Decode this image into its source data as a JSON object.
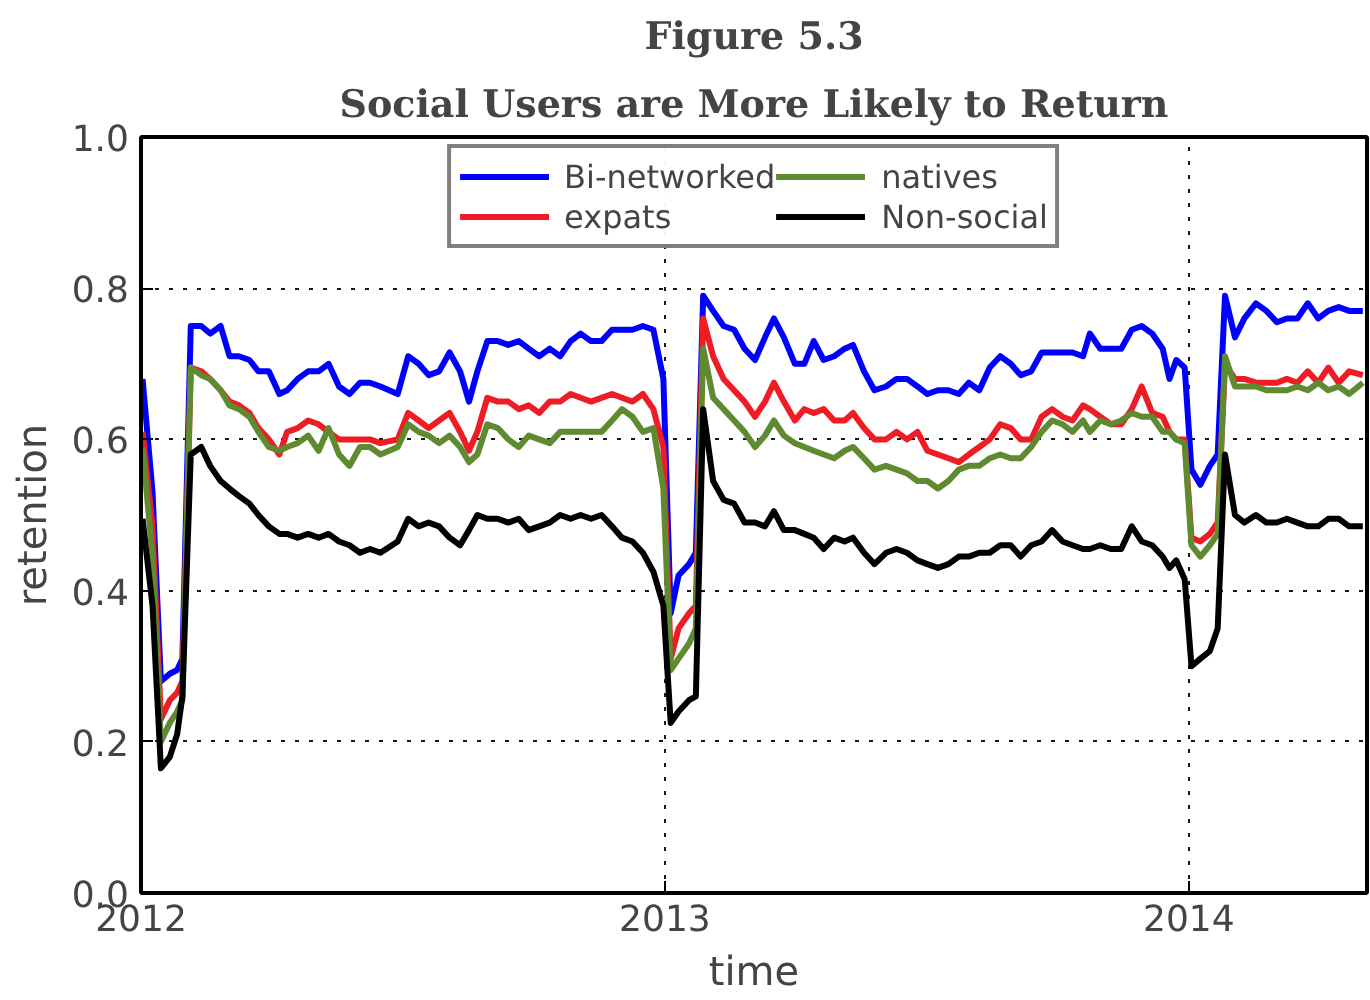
{
  "chart_data": {
    "type": "line",
    "title": "Figure 5.3",
    "subtitle": "Social Users are More Likely to Return",
    "xlabel": "time",
    "ylabel": "retention",
    "x": [
      2012.003,
      2012.022,
      2012.038,
      2012.055,
      2012.069,
      2012.079,
      2012.095,
      2012.115,
      2012.132,
      2012.152,
      2012.169,
      2012.187,
      2012.207,
      2012.224,
      2012.244,
      2012.264,
      2012.279,
      2012.299,
      2012.319,
      2012.339,
      2012.358,
      2012.378,
      2012.398,
      2012.418,
      2012.437,
      2012.457,
      2012.49,
      2012.51,
      2012.53,
      2012.549,
      2012.569,
      2012.589,
      2012.609,
      2012.626,
      2012.642,
      2012.661,
      2012.681,
      2012.701,
      2012.721,
      2012.74,
      2012.76,
      2012.78,
      2012.8,
      2012.82,
      2012.839,
      2012.859,
      2012.879,
      2012.899,
      2012.918,
      2012.938,
      2012.958,
      2012.978,
      2012.997,
      2013.011,
      2013.026,
      2013.046,
      2013.059,
      2013.073,
      2013.092,
      2013.112,
      2013.132,
      2013.152,
      2013.172,
      2013.191,
      2013.208,
      2013.227,
      2013.248,
      2013.266,
      2013.284,
      2013.303,
      2013.323,
      2013.343,
      2013.359,
      2013.38,
      2013.4,
      2013.422,
      2013.442,
      2013.462,
      2013.482,
      2013.501,
      2013.521,
      2013.541,
      2013.561,
      2013.58,
      2013.6,
      2013.62,
      2013.64,
      2013.66,
      2013.679,
      2013.699,
      2013.719,
      2013.739,
      2013.759,
      2013.778,
      2013.798,
      2013.811,
      2013.831,
      2013.851,
      2013.871,
      2013.891,
      2013.91,
      2013.93,
      2013.95,
      2013.963,
      2013.976,
      2013.992,
      2014.005,
      2014.022,
      2014.04,
      2014.055,
      2014.069,
      2014.088,
      2014.106,
      2014.128,
      2014.148,
      2014.168,
      2014.187,
      2014.207,
      2014.227,
      2014.247,
      2014.266,
      2014.286,
      2014.306,
      2014.332
    ],
    "series": [
      {
        "name": "Bi-networked",
        "color": "#0000ff",
        "values": [
          0.68,
          0.53,
          0.28,
          0.29,
          0.295,
          0.31,
          0.75,
          0.75,
          0.74,
          0.75,
          0.71,
          0.71,
          0.705,
          0.69,
          0.69,
          0.66,
          0.665,
          0.68,
          0.69,
          0.69,
          0.7,
          0.67,
          0.66,
          0.675,
          0.675,
          0.67,
          0.66,
          0.71,
          0.7,
          0.685,
          0.69,
          0.715,
          0.69,
          0.65,
          0.69,
          0.73,
          0.73,
          0.725,
          0.73,
          0.72,
          0.71,
          0.72,
          0.71,
          0.73,
          0.74,
          0.73,
          0.73,
          0.745,
          0.745,
          0.745,
          0.75,
          0.745,
          0.68,
          0.37,
          0.42,
          0.435,
          0.45,
          0.79,
          0.77,
          0.75,
          0.745,
          0.72,
          0.705,
          0.735,
          0.76,
          0.735,
          0.7,
          0.7,
          0.73,
          0.705,
          0.71,
          0.72,
          0.725,
          0.69,
          0.665,
          0.67,
          0.68,
          0.68,
          0.67,
          0.66,
          0.665,
          0.665,
          0.66,
          0.675,
          0.665,
          0.695,
          0.71,
          0.7,
          0.685,
          0.69,
          0.715,
          0.715,
          0.715,
          0.715,
          0.71,
          0.74,
          0.72,
          0.72,
          0.72,
          0.745,
          0.75,
          0.74,
          0.72,
          0.68,
          0.705,
          0.695,
          0.56,
          0.54,
          0.565,
          0.58,
          0.79,
          0.735,
          0.76,
          0.78,
          0.77,
          0.755,
          0.76,
          0.76,
          0.78,
          0.76,
          0.77,
          0.775,
          0.77,
          0.77
        ]
      },
      {
        "name": "expats",
        "color": "#ee1c25",
        "values": [
          0.61,
          0.485,
          0.23,
          0.255,
          0.265,
          0.28,
          0.695,
          0.69,
          0.68,
          0.665,
          0.65,
          0.645,
          0.635,
          0.615,
          0.6,
          0.58,
          0.61,
          0.615,
          0.625,
          0.62,
          0.61,
          0.6,
          0.6,
          0.6,
          0.6,
          0.595,
          0.6,
          0.635,
          0.625,
          0.615,
          0.625,
          0.635,
          0.61,
          0.585,
          0.61,
          0.655,
          0.65,
          0.65,
          0.64,
          0.645,
          0.635,
          0.65,
          0.65,
          0.66,
          0.655,
          0.65,
          0.655,
          0.66,
          0.655,
          0.65,
          0.66,
          0.64,
          0.59,
          0.31,
          0.35,
          0.37,
          0.38,
          0.76,
          0.71,
          0.68,
          0.665,
          0.65,
          0.63,
          0.65,
          0.675,
          0.65,
          0.625,
          0.64,
          0.635,
          0.64,
          0.625,
          0.625,
          0.635,
          0.615,
          0.6,
          0.6,
          0.61,
          0.6,
          0.61,
          0.585,
          0.58,
          0.575,
          0.57,
          0.58,
          0.59,
          0.6,
          0.62,
          0.615,
          0.6,
          0.6,
          0.63,
          0.64,
          0.63,
          0.625,
          0.645,
          0.64,
          0.63,
          0.62,
          0.62,
          0.64,
          0.67,
          0.635,
          0.63,
          0.61,
          0.6,
          0.6,
          0.47,
          0.465,
          0.475,
          0.49,
          0.7,
          0.68,
          0.68,
          0.675,
          0.675,
          0.675,
          0.68,
          0.675,
          0.69,
          0.675,
          0.695,
          0.675,
          0.69,
          0.685
        ]
      },
      {
        "name": "natives",
        "color": "#5f8a2f",
        "values": [
          0.59,
          0.445,
          0.2,
          0.225,
          0.24,
          0.255,
          0.695,
          0.685,
          0.68,
          0.665,
          0.645,
          0.64,
          0.63,
          0.61,
          0.59,
          0.585,
          0.59,
          0.595,
          0.605,
          0.585,
          0.615,
          0.58,
          0.565,
          0.59,
          0.59,
          0.58,
          0.59,
          0.62,
          0.61,
          0.605,
          0.595,
          0.605,
          0.59,
          0.57,
          0.58,
          0.62,
          0.615,
          0.6,
          0.59,
          0.605,
          0.6,
          0.595,
          0.61,
          0.61,
          0.61,
          0.61,
          0.61,
          0.625,
          0.64,
          0.63,
          0.61,
          0.615,
          0.535,
          0.295,
          0.31,
          0.33,
          0.35,
          0.72,
          0.655,
          0.64,
          0.625,
          0.61,
          0.59,
          0.605,
          0.625,
          0.605,
          0.595,
          0.59,
          0.585,
          0.58,
          0.575,
          0.585,
          0.59,
          0.575,
          0.56,
          0.565,
          0.56,
          0.555,
          0.545,
          0.545,
          0.535,
          0.545,
          0.56,
          0.565,
          0.565,
          0.575,
          0.58,
          0.575,
          0.575,
          0.59,
          0.61,
          0.625,
          0.62,
          0.61,
          0.625,
          0.61,
          0.625,
          0.62,
          0.625,
          0.635,
          0.63,
          0.63,
          0.61,
          0.61,
          0.6,
          0.595,
          0.46,
          0.445,
          0.46,
          0.475,
          0.71,
          0.67,
          0.67,
          0.67,
          0.665,
          0.665,
          0.665,
          0.67,
          0.665,
          0.675,
          0.665,
          0.67,
          0.66,
          0.675
        ]
      },
      {
        "name": "Non-social",
        "color": "#000000",
        "values": [
          0.495,
          0.38,
          0.165,
          0.18,
          0.21,
          0.26,
          0.58,
          0.59,
          0.565,
          0.545,
          0.535,
          0.525,
          0.515,
          0.5,
          0.485,
          0.475,
          0.475,
          0.47,
          0.475,
          0.47,
          0.475,
          0.465,
          0.46,
          0.45,
          0.455,
          0.45,
          0.465,
          0.495,
          0.485,
          0.49,
          0.485,
          0.47,
          0.46,
          0.48,
          0.5,
          0.495,
          0.495,
          0.49,
          0.495,
          0.48,
          0.485,
          0.49,
          0.5,
          0.495,
          0.5,
          0.495,
          0.5,
          0.485,
          0.47,
          0.465,
          0.45,
          0.425,
          0.38,
          0.225,
          0.24,
          0.255,
          0.26,
          0.64,
          0.545,
          0.52,
          0.515,
          0.49,
          0.49,
          0.485,
          0.505,
          0.48,
          0.48,
          0.475,
          0.47,
          0.455,
          0.47,
          0.465,
          0.47,
          0.45,
          0.435,
          0.45,
          0.455,
          0.45,
          0.44,
          0.435,
          0.43,
          0.435,
          0.445,
          0.445,
          0.45,
          0.45,
          0.46,
          0.46,
          0.445,
          0.46,
          0.465,
          0.48,
          0.465,
          0.46,
          0.455,
          0.455,
          0.46,
          0.455,
          0.455,
          0.485,
          0.465,
          0.46,
          0.445,
          0.43,
          0.44,
          0.415,
          0.3,
          0.31,
          0.32,
          0.35,
          0.58,
          0.5,
          0.49,
          0.5,
          0.49,
          0.49,
          0.495,
          0.49,
          0.485,
          0.485,
          0.495,
          0.495,
          0.485,
          0.485
        ]
      }
    ],
    "xlim": [
      2012,
      2014.34
    ],
    "xticks": [
      2012,
      2013,
      2014
    ],
    "ylim": [
      0,
      1
    ],
    "yticks": [
      {
        "value": 0,
        "label": "0.0"
      },
      {
        "value": 0.2,
        "label": "0.2"
      },
      {
        "value": 0.4,
        "label": "0.4"
      },
      {
        "value": 0.6,
        "label": "0.6"
      },
      {
        "value": 0.8,
        "label": "0.8"
      },
      {
        "value": 1,
        "label": "1.0"
      }
    ],
    "grid": true,
    "legend": "top",
    "line_style": "solid",
    "marker": "none"
  }
}
